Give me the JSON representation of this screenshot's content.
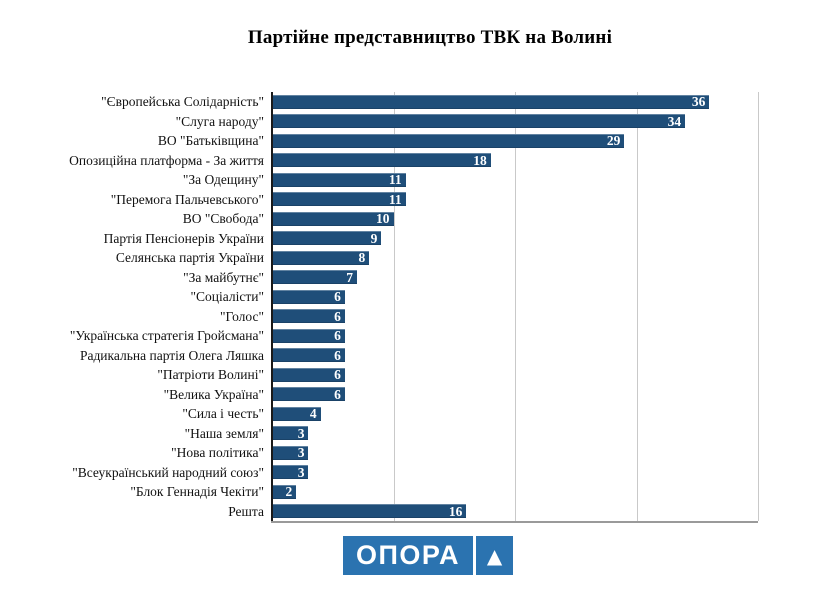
{
  "title": "Партійне представництво ТВК на Волині",
  "logo": {
    "text": "ОПОРА",
    "triangle": "▲",
    "color": "#2b73b0"
  },
  "chart_data": {
    "type": "bar",
    "orientation": "horizontal",
    "title": "Партійне представництво ТВК на Волині",
    "xlabel": "",
    "ylabel": "",
    "xlim": [
      0,
      40
    ],
    "gridlines": [
      10,
      20,
      30,
      40
    ],
    "grid": true,
    "legend": "none",
    "bar_color": "#1f4e79",
    "value_label_color": "#ffffff",
    "categories": [
      "\"Європейська Солідарність\"",
      "\"Слуга народу\"",
      "ВО \"Батьківщина\"",
      "Опозиційна платформа - За життя",
      "\"За Одещину\"",
      "\"Перемога Пальчевського\"",
      "ВО \"Свобода\"",
      "Партія Пенсіонерів України",
      "Селянська партія України",
      "\"За майбутнє\"",
      "\"Соціалісти\"",
      "\"Голос\"",
      "\"Українська стратегія Гройсмана\"",
      "Радикальна партія Олега Ляшка",
      "\"Патріоти Волині\"",
      "\"Велика Україна\"",
      "\"Сила і честь\"",
      "\"Наша земля\"",
      "\"Нова політика\"",
      "\"Всеукраїнський народний союз\"",
      "\"Блок Геннадія Чекіти\"",
      "Решта"
    ],
    "values": [
      36,
      34,
      29,
      18,
      11,
      11,
      10,
      9,
      8,
      7,
      6,
      6,
      6,
      6,
      6,
      6,
      4,
      3,
      3,
      3,
      2,
      16
    ]
  }
}
